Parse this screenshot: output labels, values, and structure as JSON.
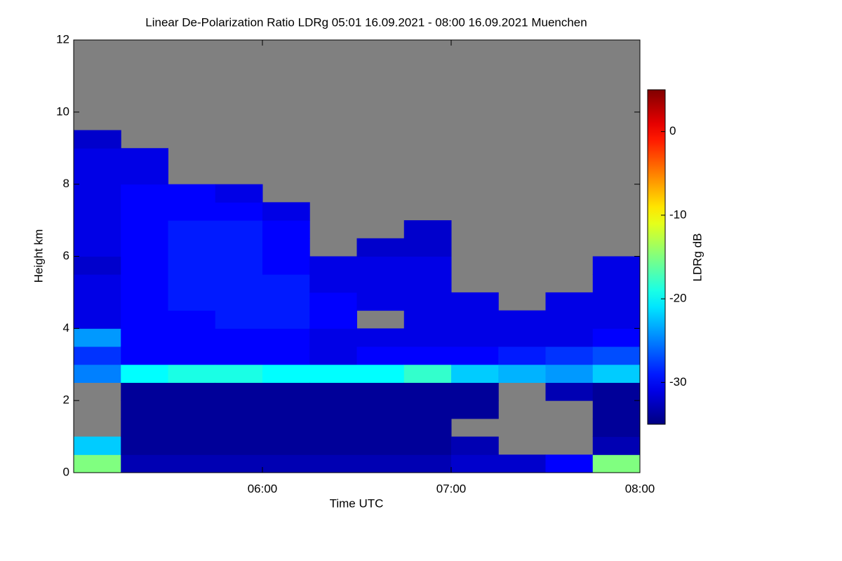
{
  "chart_data": {
    "type": "heatmap",
    "title": "Linear De-Polarization Ratio LDRg   05:01 16.09.2021 - 08:00 16.09.2021 Muenchen",
    "x_label": "Time UTC",
    "y_label": "Height km",
    "colorbar_label": "LDRg dB",
    "colormap": "jet",
    "missing_color": "#808080",
    "xlim": [
      5.0,
      8.0
    ],
    "xticks": [
      {
        "value": 6,
        "label": "06:00"
      },
      {
        "value": 7,
        "label": "07:00"
      },
      {
        "value": 8,
        "label": "08:00"
      }
    ],
    "ylim": [
      0,
      12
    ],
    "yticks": [
      0,
      2,
      4,
      6,
      8,
      10,
      12
    ],
    "clim": [
      -35,
      5
    ],
    "cticks": [
      0,
      -10,
      -20,
      -30
    ],
    "x": [
      5.125,
      5.375,
      5.625,
      5.875,
      6.125,
      6.375,
      6.625,
      6.875,
      7.125,
      7.375,
      7.625,
      7.875
    ],
    "y": [
      0.25,
      0.75,
      1.25,
      1.75,
      2.25,
      2.75,
      3.25,
      3.75,
      4.25,
      4.75,
      5.25,
      5.75,
      6.25,
      6.75,
      7.25,
      7.75,
      8.25,
      8.75,
      9.25,
      9.75,
      10.25,
      10.75,
      11.25,
      11.75
    ],
    "values": [
      [
        -15,
        -22,
        null,
        null,
        null,
        -25,
        -28,
        -24,
        -31,
        -31,
        -31,
        -32,
        -31,
        -31,
        -31,
        -31,
        -31,
        -31,
        -32,
        null,
        null,
        null,
        null,
        null
      ],
      [
        -33,
        -34,
        -34,
        -34,
        -34,
        -20,
        -30,
        -30,
        -30,
        -30,
        -30,
        -30,
        -30,
        -30,
        -30,
        -30,
        -31,
        -31,
        null,
        null,
        null,
        null,
        null,
        null
      ],
      [
        -33,
        -34,
        -34,
        -34,
        -34,
        -19,
        -30,
        -30,
        -30,
        -29,
        -29,
        -29,
        -29,
        -29,
        -30,
        -30,
        null,
        null,
        null,
        null,
        null,
        null,
        null,
        null
      ],
      [
        -33,
        -34,
        -34,
        -34,
        -34,
        -19,
        -30,
        -30,
        -29,
        -29,
        -29,
        -29,
        -29,
        -29,
        -30,
        -31,
        null,
        null,
        null,
        null,
        null,
        null,
        null,
        null
      ],
      [
        -33,
        -34,
        -34,
        -34,
        -34,
        -20,
        -30,
        -30,
        -29,
        -29,
        -29,
        -30,
        -30,
        -30,
        -31,
        null,
        null,
        null,
        null,
        null,
        null,
        null,
        null,
        null
      ],
      [
        -33,
        -34,
        -34,
        -34,
        -34,
        -20,
        -31,
        -31,
        -30,
        -30,
        -31,
        -31,
        null,
        null,
        null,
        null,
        null,
        null,
        null,
        null,
        null,
        null,
        null,
        null
      ],
      [
        -33,
        -34,
        -34,
        -34,
        -34,
        -20,
        -30,
        -31,
        null,
        -31,
        -31,
        -31,
        -32,
        null,
        null,
        null,
        null,
        null,
        null,
        null,
        null,
        null,
        null,
        null
      ],
      [
        -33,
        -34,
        -34,
        -34,
        -34,
        -18,
        -30,
        -31,
        -31,
        -31,
        -31,
        -31,
        -32,
        -32,
        null,
        null,
        null,
        null,
        null,
        null,
        null,
        null,
        null,
        null
      ],
      [
        -32,
        -33,
        null,
        -34,
        -34,
        -22,
        -30,
        -31,
        -31,
        -31,
        null,
        null,
        null,
        null,
        null,
        null,
        null,
        null,
        null,
        null,
        null,
        null,
        null,
        null
      ],
      [
        -32,
        null,
        null,
        null,
        null,
        -23,
        -29,
        -31,
        -31,
        null,
        null,
        null,
        null,
        null,
        null,
        null,
        null,
        null,
        null,
        null,
        null,
        null,
        null,
        null
      ],
      [
        -30,
        null,
        null,
        null,
        -33,
        -24,
        -28,
        -31,
        -31,
        -31,
        null,
        null,
        null,
        null,
        null,
        null,
        null,
        null,
        null,
        null,
        null,
        null,
        null,
        null
      ],
      [
        -15,
        -33,
        -34,
        -34,
        -34,
        -22,
        -27,
        -30,
        -31,
        -31,
        -31,
        -31,
        null,
        null,
        null,
        null,
        null,
        null,
        null,
        null,
        null,
        null,
        null,
        null
      ]
    ]
  }
}
